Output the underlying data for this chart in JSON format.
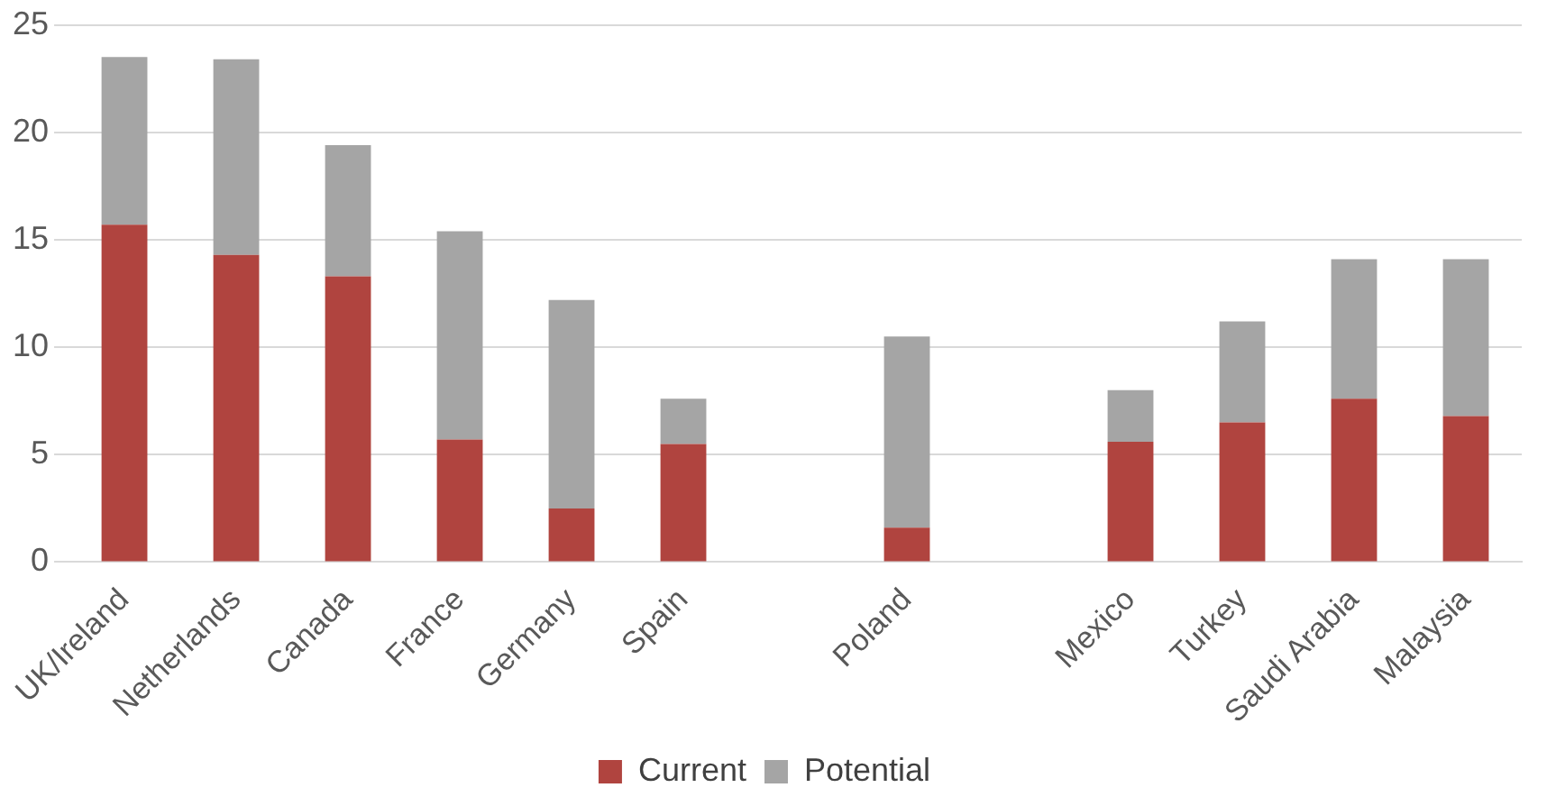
{
  "chart_data": {
    "type": "bar",
    "stacked": true,
    "categories": [
      "UK/Ireland",
      "Netherlands",
      "Canada",
      "France",
      "Germany",
      "Spain",
      null,
      "Poland",
      null,
      "Mexico",
      "Turkey",
      "Saudi Arabia",
      "Malaysia"
    ],
    "series": [
      {
        "name": "Current",
        "color": "#b0443f",
        "values": [
          15.7,
          14.3,
          13.3,
          5.7,
          2.5,
          5.5,
          null,
          1.6,
          null,
          5.6,
          6.5,
          7.6,
          6.8
        ]
      },
      {
        "name": "Potential",
        "color": "#a5a5a5",
        "values": [
          7.8,
          9.1,
          6.1,
          9.7,
          9.7,
          2.1,
          null,
          8.9,
          null,
          2.4,
          4.7,
          6.5,
          7.3
        ]
      }
    ],
    "ylim": [
      0,
      25
    ],
    "yticks": [
      0,
      5,
      10,
      15,
      20,
      25
    ],
    "grid": "y",
    "legend": "bottom"
  }
}
